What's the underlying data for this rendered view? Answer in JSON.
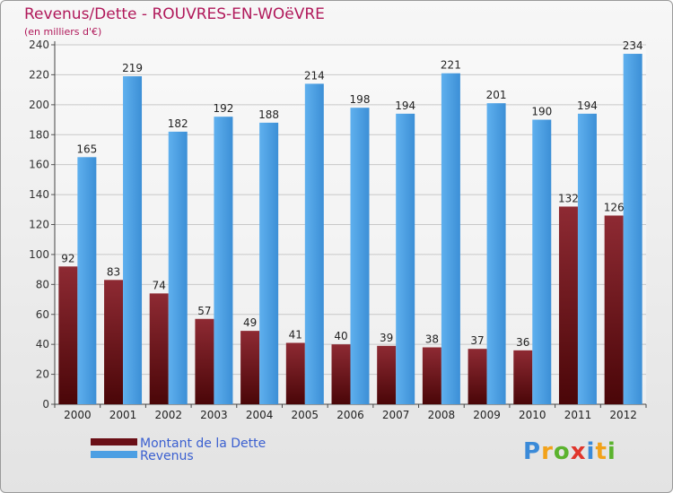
{
  "title": "Revenus/Dette - ROUVRES-EN-WOëVRE",
  "subtitle": "(en milliers d'€)",
  "brand": "Proxiti",
  "chart_data": {
    "type": "bar",
    "categories": [
      "2000",
      "2001",
      "2002",
      "2003",
      "2004",
      "2005",
      "2006",
      "2007",
      "2008",
      "2009",
      "2010",
      "2011",
      "2012"
    ],
    "series": [
      {
        "name": "Montant de la Dette",
        "color": "#7b1c24",
        "values": [
          92,
          83,
          74,
          57,
          49,
          41,
          40,
          39,
          38,
          37,
          36,
          132,
          126
        ]
      },
      {
        "name": "Revenus",
        "color": "#4c9fe3",
        "values": [
          165,
          219,
          182,
          192,
          188,
          214,
          198,
          194,
          221,
          201,
          190,
          194,
          234
        ]
      }
    ],
    "ylim": [
      0,
      240
    ],
    "yticks": [
      0,
      20,
      40,
      60,
      80,
      100,
      120,
      140,
      160,
      180,
      200,
      220,
      240
    ],
    "grid": true,
    "legend_position": "bottom-left"
  }
}
